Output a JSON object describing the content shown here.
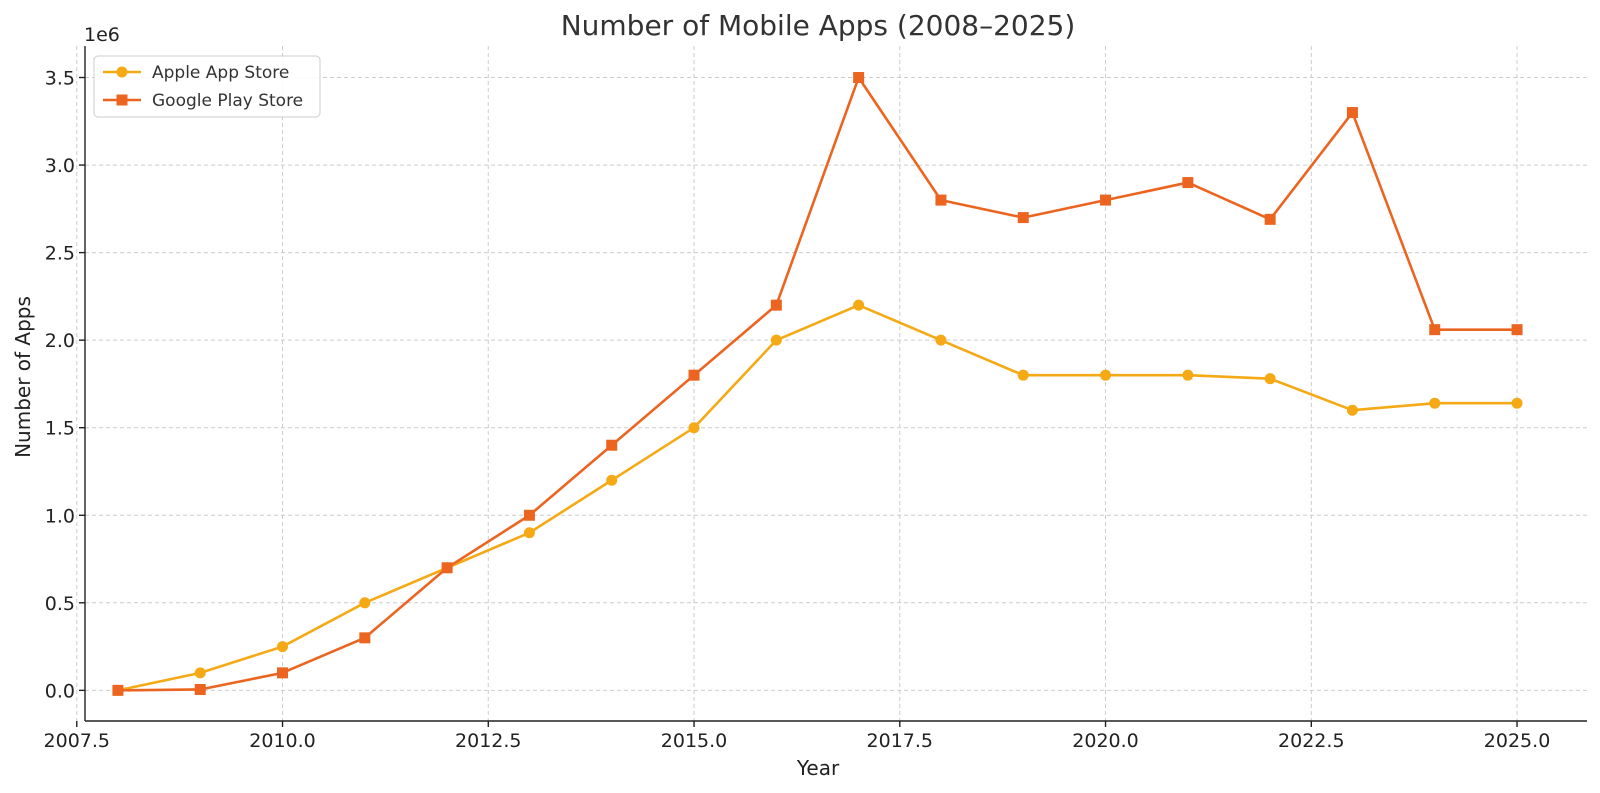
{
  "chart_data": {
    "type": "line",
    "title": "Number of Mobile Apps (2008–2025)",
    "xlabel": "Year",
    "ylabel": "Number of Apps",
    "y_offset_label": "1e6",
    "xlim": [
      2007.6,
      2025.85
    ],
    "ylim": [
      -0.175,
      3.68
    ],
    "x_ticks": [
      2007.5,
      2010.0,
      2012.5,
      2015.0,
      2017.5,
      2020.0,
      2022.5,
      2025.0
    ],
    "x_tick_labels": [
      "2007.5",
      "2010.0",
      "2012.5",
      "2015.0",
      "2017.5",
      "2020.0",
      "2022.5",
      "2025.0"
    ],
    "y_ticks": [
      0.0,
      0.5,
      1.0,
      1.5,
      2.0,
      2.5,
      3.0,
      3.5
    ],
    "y_tick_labels": [
      "0.0",
      "0.5",
      "1.0",
      "1.5",
      "2.0",
      "2.5",
      "3.0",
      "3.5"
    ],
    "grid": true,
    "legend_position": "top-left",
    "x": [
      2008,
      2009,
      2010,
      2011,
      2012,
      2013,
      2014,
      2015,
      2016,
      2017,
      2018,
      2019,
      2020,
      2021,
      2022,
      2023,
      2024,
      2025
    ],
    "series": [
      {
        "name": "Apple App Store",
        "color": "#F5A915",
        "marker": "circle",
        "values": [
          0.0,
          0.1,
          0.25,
          0.5,
          0.7,
          0.9,
          1.2,
          1.5,
          2.0,
          2.2,
          2.0,
          1.8,
          1.8,
          1.8,
          1.78,
          1.6,
          1.64,
          1.64
        ]
      },
      {
        "name": "Google Play Store",
        "color": "#EC6520",
        "marker": "square",
        "values": [
          0.0,
          0.005,
          0.1,
          0.3,
          0.7,
          1.0,
          1.4,
          1.8,
          2.2,
          3.5,
          2.8,
          2.7,
          2.8,
          2.9,
          2.69,
          3.3,
          2.06,
          2.06
        ]
      }
    ]
  }
}
